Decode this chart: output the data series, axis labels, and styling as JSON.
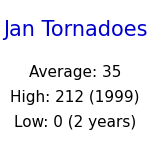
{
  "title": "Jan Tornadoes",
  "title_color": "#0000CC",
  "title_fontsize": 15,
  "lines": [
    "Average: 35",
    "High: 212 (1999)",
    "Low: 0 (2 years)"
  ],
  "lines_color": "#000000",
  "lines_fontsize": 11,
  "background_color": "#ffffff",
  "fig_width": 1.5,
  "fig_height": 1.5,
  "dpi": 100
}
